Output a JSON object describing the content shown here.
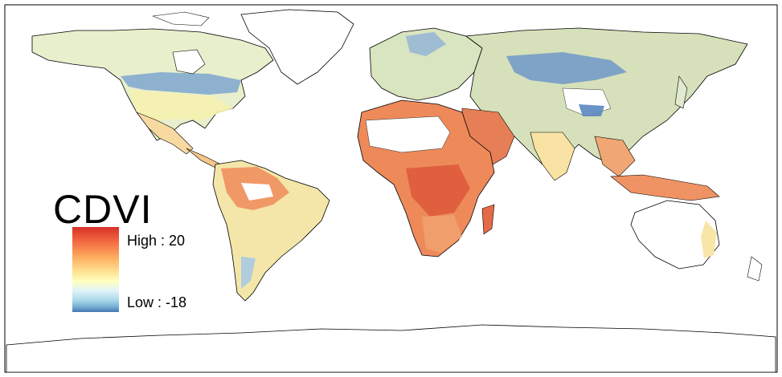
{
  "legend": {
    "title": "CDVI",
    "high_label": "High : 20",
    "low_label": "Low : -18",
    "high_value": 20,
    "low_value": -18,
    "gradient_colors": [
      "#d73027",
      "#f46d43",
      "#fdae61",
      "#fee090",
      "#ffffbf",
      "#e0f3f8",
      "#abd9e9",
      "#74add1",
      "#4575b4"
    ]
  },
  "colors": {
    "coastline": "#000000",
    "background": "#ffffff"
  }
}
